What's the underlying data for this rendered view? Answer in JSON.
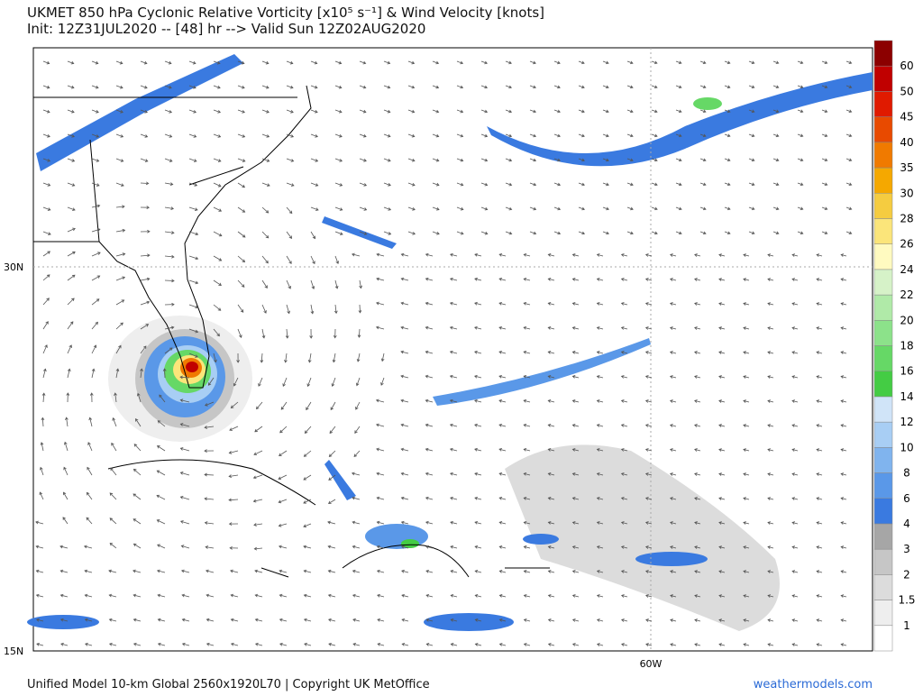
{
  "header": {
    "title": "UKMET 850 hPa Cyclonic Relative Vorticity [x10⁵ s⁻¹] & Wind Velocity [knots]",
    "subtitle": "Init: 12Z31JUL2020 -- [48] hr --> Valid Sun 12Z02AUG2020"
  },
  "map": {
    "lat_labels": [
      "30N",
      "15N"
    ],
    "lon_labels": [
      "60W"
    ]
  },
  "colorbar": {
    "labels": [
      "1",
      "1.5",
      "2",
      "3",
      "4",
      "6",
      "8",
      "10",
      "12",
      "14",
      "16",
      "18",
      "20",
      "22",
      "24",
      "26",
      "28",
      "30",
      "35",
      "40",
      "45",
      "50",
      "60"
    ],
    "colors": [
      "#ffffff",
      "#eeeeee",
      "#dcdcdc",
      "#c6c6c6",
      "#a6a6a6",
      "#3a7ae0",
      "#5a98e8",
      "#80b4ee",
      "#a8cef4",
      "#d0e4f8",
      "#44cc44",
      "#66d866",
      "#8ce28a",
      "#b0eaa8",
      "#d6f2c8",
      "#fffac0",
      "#fbe57a",
      "#f5cc40",
      "#f5a800",
      "#f07a00",
      "#e84a00",
      "#e01a00",
      "#c00000",
      "#8c0000"
    ]
  },
  "footer": {
    "credit": "Unified Model 10-km Global 2560x1920L70 | Copyright UK MetOffice",
    "site": "weathermodels.com"
  }
}
